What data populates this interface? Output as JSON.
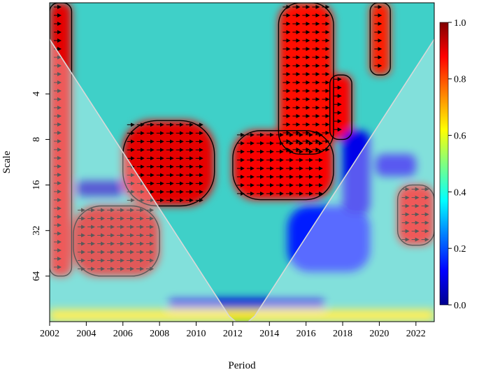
{
  "chart_data": {
    "type": "heatmap",
    "title": "",
    "xlabel": "Period",
    "ylabel": "Scale",
    "xlim": [
      2002,
      2023
    ],
    "x_ticks": [
      "2002",
      "2004",
      "2006",
      "2008",
      "2010",
      "2012",
      "2014",
      "2016",
      "2018",
      "2020",
      "2022"
    ],
    "y_scale": "log2",
    "ylim": [
      1,
      128
    ],
    "y_ticks": [
      "4",
      "8",
      "16",
      "32",
      "64"
    ],
    "colorbar": {
      "range": [
        0,
        1
      ],
      "ticks": [
        "1.0",
        "0.8",
        "0.6",
        "0.4",
        "0.2",
        "0.0"
      ],
      "colormap": [
        "#00008f",
        "#0000ff",
        "#0080ff",
        "#00ffff",
        "#80ff80",
        "#ffff00",
        "#ff8000",
        "#ff0000",
        "#800000"
      ]
    },
    "cone_of_influence": true,
    "significance_contours": true,
    "phase_arrows": true,
    "high_coherence_regions": [
      {
        "x": [
          2002.0,
          2003.2
        ],
        "y": [
          1,
          64
        ],
        "value": 0.9
      },
      {
        "x": [
          2003.3,
          2008.0
        ],
        "y": [
          22,
          64
        ],
        "value": 0.92
      },
      {
        "x": [
          2006.0,
          2011.0
        ],
        "y": [
          6,
          22
        ],
        "value": 0.9
      },
      {
        "x": [
          2012.0,
          2017.5
        ],
        "y": [
          7,
          20
        ],
        "value": 0.88
      },
      {
        "x": [
          2014.5,
          2017.5
        ],
        "y": [
          1,
          10
        ],
        "value": 0.86
      },
      {
        "x": [
          2017.3,
          2018.5
        ],
        "y": [
          3,
          8
        ],
        "value": 0.88
      },
      {
        "x": [
          2021.0,
          2023.0
        ],
        "y": [
          16,
          40
        ],
        "value": 0.9
      },
      {
        "x": [
          2019.5,
          2020.6
        ],
        "y": [
          1,
          3
        ],
        "value": 0.85
      }
    ],
    "low_coherence_regions": [
      {
        "x": [
          2003.5,
          2006.0
        ],
        "y": [
          15,
          19
        ],
        "value": 0.05
      },
      {
        "x": [
          2008.5,
          2017.0
        ],
        "y": [
          90,
          105
        ],
        "value": 0.08
      },
      {
        "x": [
          2015.0,
          2019.5
        ],
        "y": [
          22,
          60
        ],
        "value": 0.15
      },
      {
        "x": [
          2018.0,
          2019.5
        ],
        "y": [
          7,
          25
        ],
        "value": 0.1
      },
      {
        "x": [
          2019.8,
          2022.0
        ],
        "y": [
          10,
          14
        ],
        "value": 0.1
      }
    ]
  }
}
